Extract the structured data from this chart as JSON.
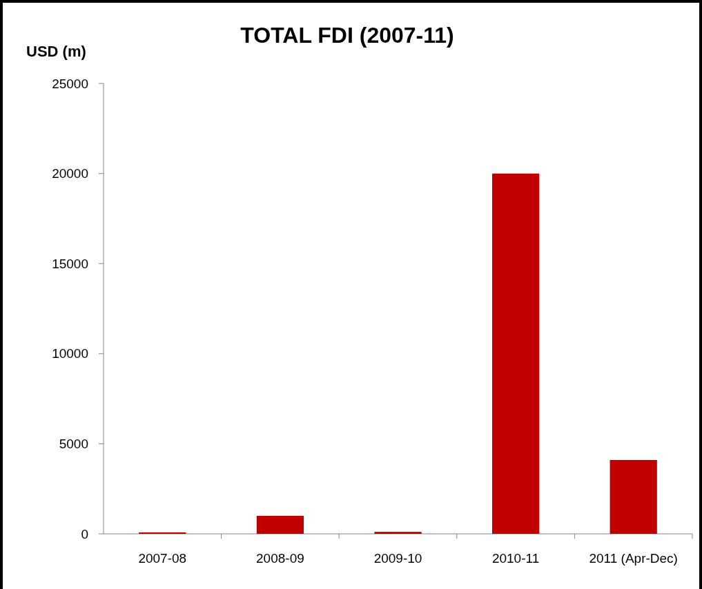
{
  "chart_data": {
    "type": "bar",
    "title": "TOTAL FDI (2007-11)",
    "ylabel": "USD (m)",
    "categories": [
      "2007-08",
      "2008-09",
      "2009-10",
      "2010-11",
      "2011 (Apr-Dec)"
    ],
    "values": [
      80,
      1000,
      110,
      20000,
      4100
    ],
    "color": "#c00000",
    "ylim": [
      0,
      25000
    ],
    "yticks": [
      0,
      5000,
      10000,
      15000,
      20000,
      25000
    ],
    "grid": false
  }
}
